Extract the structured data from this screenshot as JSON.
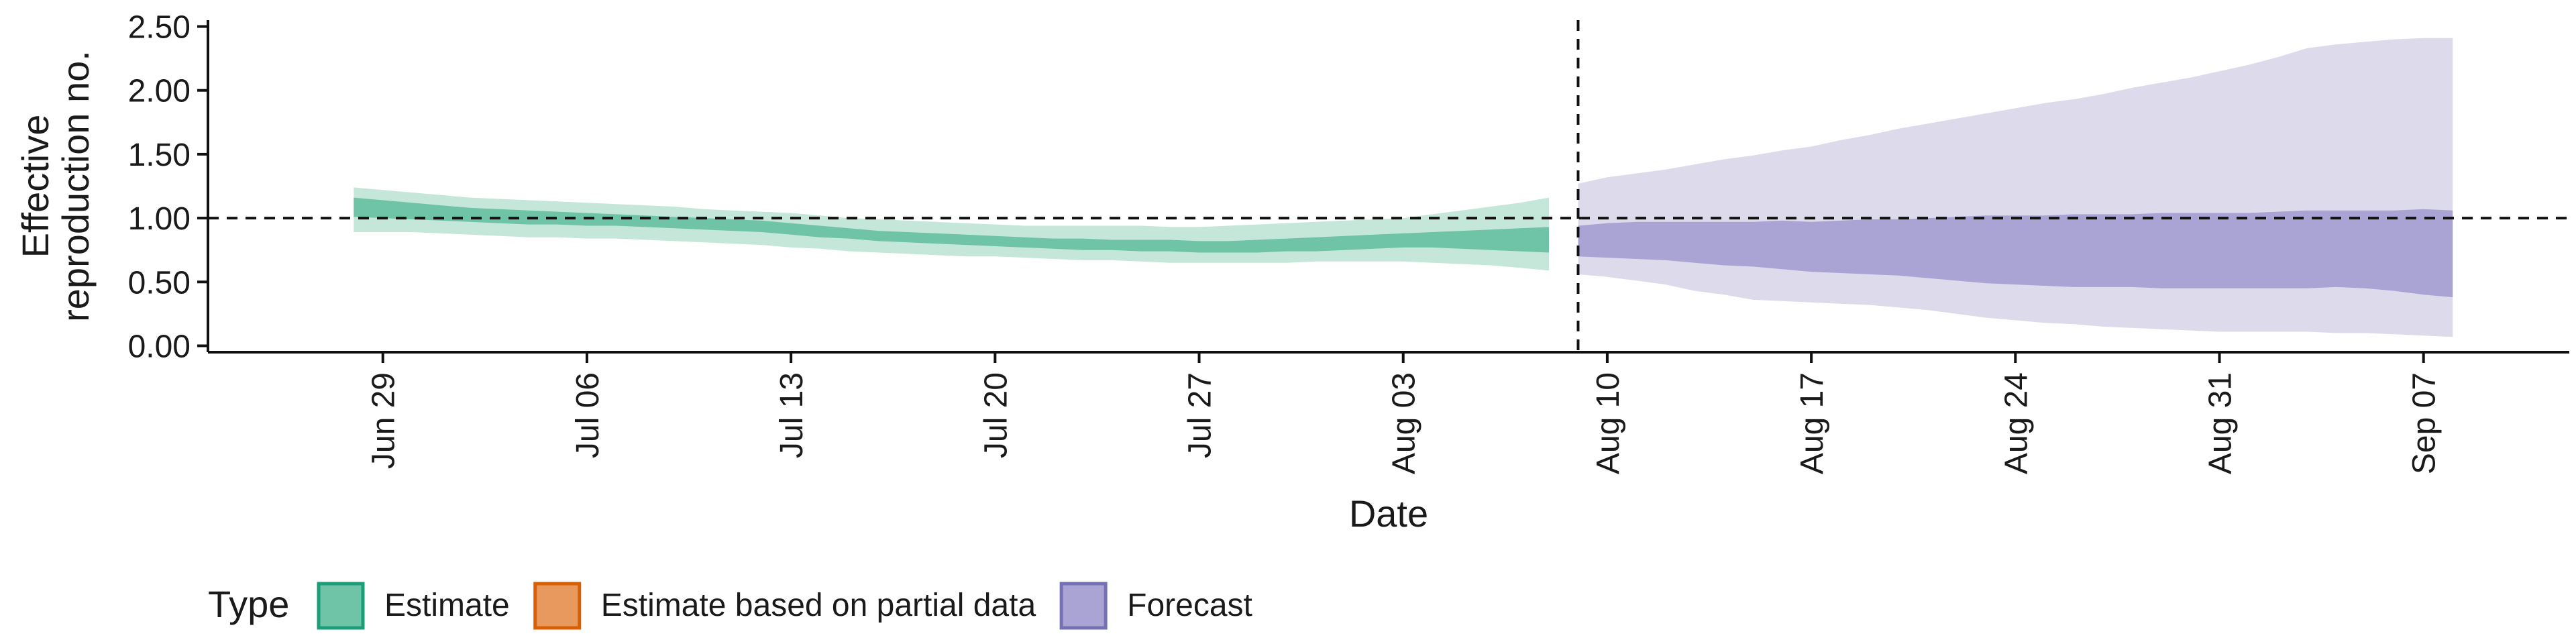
{
  "chart_data": {
    "type": "area",
    "title": "",
    "xlabel": "Date",
    "ylabel_lines": [
      "Effective",
      "reproduction no."
    ],
    "ylim": [
      -0.05,
      2.55
    ],
    "yticks": [
      0,
      0.5,
      1,
      1.5,
      2,
      2.5
    ],
    "ytick_labels": [
      "0.00",
      "0.50",
      "1.00",
      "1.50",
      "2.00",
      "2.50"
    ],
    "x_ticks": [
      {
        "date": "2020-06-29",
        "label": "Jun 29"
      },
      {
        "date": "2020-07-06",
        "label": "Jul 06"
      },
      {
        "date": "2020-07-13",
        "label": "Jul 13"
      },
      {
        "date": "2020-07-20",
        "label": "Jul 20"
      },
      {
        "date": "2020-07-27",
        "label": "Jul 27"
      },
      {
        "date": "2020-08-03",
        "label": "Aug 03"
      },
      {
        "date": "2020-08-10",
        "label": "Aug 10"
      },
      {
        "date": "2020-08-17",
        "label": "Aug 17"
      },
      {
        "date": "2020-08-24",
        "label": "Aug 24"
      },
      {
        "date": "2020-08-31",
        "label": "Aug 31"
      },
      {
        "date": "2020-09-07",
        "label": "Sep 07"
      }
    ],
    "xlim": [
      "2020-06-23",
      "2020-09-12"
    ],
    "reference_line_y": 1.0,
    "reference_line_date": "2020-08-09",
    "grid": false,
    "legend_position": "bottom-left",
    "legend_title": "Type",
    "legend": [
      {
        "label": "Estimate",
        "fill": "#6fc3a7",
        "border": "#1b9e77"
      },
      {
        "label": "Estimate based on partial data",
        "fill": "#e8995d",
        "border": "#d95f02"
      },
      {
        "label": "Forecast",
        "fill": "#a9a4d3",
        "border": "#7570b3"
      }
    ],
    "series": [
      {
        "name": "Estimate",
        "inner_color": "#6fc3a7",
        "outer_color": "#c5e7da",
        "x": [
          "2020-06-28",
          "2020-06-29",
          "2020-06-30",
          "2020-07-01",
          "2020-07-02",
          "2020-07-03",
          "2020-07-04",
          "2020-07-05",
          "2020-07-06",
          "2020-07-07",
          "2020-07-08",
          "2020-07-09",
          "2020-07-10",
          "2020-07-11",
          "2020-07-12",
          "2020-07-13",
          "2020-07-14",
          "2020-07-15",
          "2020-07-16",
          "2020-07-17",
          "2020-07-18",
          "2020-07-19",
          "2020-07-20",
          "2020-07-21",
          "2020-07-22",
          "2020-07-23",
          "2020-07-24",
          "2020-07-25",
          "2020-07-26",
          "2020-07-27",
          "2020-07-28",
          "2020-07-29",
          "2020-07-30",
          "2020-07-31",
          "2020-08-01",
          "2020-08-02",
          "2020-08-03",
          "2020-08-04",
          "2020-08-05",
          "2020-08-06",
          "2020-08-07",
          "2020-08-08"
        ],
        "inner_lower": [
          1.01,
          1.0,
          0.99,
          0.98,
          0.97,
          0.96,
          0.95,
          0.95,
          0.94,
          0.94,
          0.93,
          0.92,
          0.91,
          0.9,
          0.89,
          0.87,
          0.85,
          0.84,
          0.82,
          0.81,
          0.8,
          0.79,
          0.78,
          0.77,
          0.76,
          0.75,
          0.75,
          0.74,
          0.74,
          0.73,
          0.73,
          0.73,
          0.74,
          0.74,
          0.75,
          0.76,
          0.77,
          0.77,
          0.76,
          0.75,
          0.74,
          0.73
        ],
        "inner_upper": [
          1.16,
          1.14,
          1.12,
          1.1,
          1.08,
          1.07,
          1.06,
          1.05,
          1.04,
          1.03,
          1.02,
          1.01,
          1.0,
          0.99,
          0.98,
          0.96,
          0.94,
          0.92,
          0.9,
          0.89,
          0.88,
          0.87,
          0.86,
          0.85,
          0.84,
          0.84,
          0.83,
          0.83,
          0.83,
          0.82,
          0.82,
          0.83,
          0.84,
          0.85,
          0.86,
          0.87,
          0.88,
          0.89,
          0.9,
          0.91,
          0.92,
          0.93
        ],
        "outer_lower": [
          0.89,
          0.89,
          0.89,
          0.88,
          0.87,
          0.86,
          0.85,
          0.85,
          0.84,
          0.84,
          0.83,
          0.82,
          0.81,
          0.8,
          0.79,
          0.77,
          0.76,
          0.74,
          0.73,
          0.72,
          0.71,
          0.7,
          0.7,
          0.69,
          0.68,
          0.67,
          0.67,
          0.66,
          0.65,
          0.65,
          0.65,
          0.65,
          0.65,
          0.66,
          0.66,
          0.66,
          0.66,
          0.65,
          0.64,
          0.63,
          0.61,
          0.59
        ],
        "outer_upper": [
          1.24,
          1.22,
          1.2,
          1.18,
          1.16,
          1.15,
          1.14,
          1.13,
          1.12,
          1.11,
          1.1,
          1.09,
          1.07,
          1.06,
          1.05,
          1.04,
          1.02,
          1.0,
          0.99,
          0.98,
          0.97,
          0.96,
          0.95,
          0.94,
          0.94,
          0.94,
          0.94,
          0.94,
          0.93,
          0.93,
          0.94,
          0.95,
          0.96,
          0.97,
          0.98,
          0.99,
          1.0,
          1.03,
          1.06,
          1.09,
          1.12,
          1.16
        ]
      },
      {
        "name": "Forecast",
        "inner_color": "#a9a4d3",
        "outer_color": "#dcdaeb",
        "x": [
          "2020-08-09",
          "2020-08-10",
          "2020-08-11",
          "2020-08-12",
          "2020-08-13",
          "2020-08-14",
          "2020-08-15",
          "2020-08-16",
          "2020-08-17",
          "2020-08-18",
          "2020-08-19",
          "2020-08-20",
          "2020-08-21",
          "2020-08-22",
          "2020-08-23",
          "2020-08-24",
          "2020-08-25",
          "2020-08-26",
          "2020-08-27",
          "2020-08-28",
          "2020-08-29",
          "2020-08-30",
          "2020-08-31",
          "2020-09-01",
          "2020-09-02",
          "2020-09-03",
          "2020-09-04",
          "2020-09-05",
          "2020-09-06",
          "2020-09-07",
          "2020-09-08"
        ],
        "inner_lower": [
          0.7,
          0.69,
          0.68,
          0.67,
          0.65,
          0.63,
          0.62,
          0.6,
          0.58,
          0.57,
          0.56,
          0.55,
          0.53,
          0.51,
          0.49,
          0.48,
          0.47,
          0.46,
          0.46,
          0.46,
          0.45,
          0.45,
          0.45,
          0.45,
          0.45,
          0.45,
          0.46,
          0.45,
          0.43,
          0.4,
          0.38
        ],
        "inner_upper": [
          0.94,
          0.96,
          0.97,
          0.97,
          0.97,
          0.97,
          0.97,
          0.98,
          0.97,
          0.98,
          0.99,
          0.99,
          1.0,
          1.01,
          1.02,
          1.02,
          1.02,
          1.03,
          1.03,
          1.03,
          1.04,
          1.04,
          1.04,
          1.04,
          1.05,
          1.06,
          1.06,
          1.06,
          1.06,
          1.07,
          1.06
        ],
        "outer_lower": [
          0.56,
          0.54,
          0.51,
          0.48,
          0.43,
          0.4,
          0.36,
          0.35,
          0.34,
          0.33,
          0.32,
          0.3,
          0.28,
          0.25,
          0.22,
          0.2,
          0.18,
          0.17,
          0.15,
          0.14,
          0.13,
          0.12,
          0.11,
          0.11,
          0.11,
          0.11,
          0.1,
          0.1,
          0.09,
          0.08,
          0.07
        ],
        "outer_upper": [
          1.27,
          1.32,
          1.35,
          1.38,
          1.42,
          1.46,
          1.49,
          1.53,
          1.56,
          1.61,
          1.65,
          1.7,
          1.74,
          1.78,
          1.82,
          1.86,
          1.9,
          1.93,
          1.97,
          2.02,
          2.06,
          2.1,
          2.15,
          2.2,
          2.26,
          2.33,
          2.36,
          2.38,
          2.4,
          2.41,
          2.41
        ]
      }
    ]
  }
}
